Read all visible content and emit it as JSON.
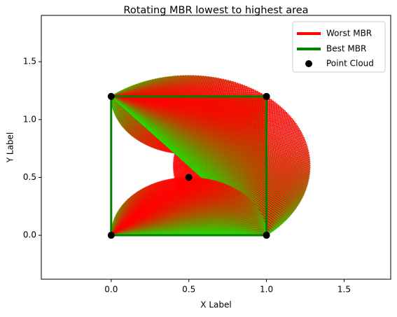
{
  "chart_data": {
    "type": "line",
    "title": "Rotating MBR lowest to highest area",
    "xlabel": "X Label",
    "ylabel": "Y Label",
    "xlim": [
      -0.45,
      1.8
    ],
    "ylim": [
      -0.38,
      1.9
    ],
    "xticks": [
      0.0,
      0.5,
      1.0,
      1.5
    ],
    "yticks": [
      0.0,
      0.5,
      1.0,
      1.5
    ],
    "xtick_labels": [
      "0.0",
      "0.5",
      "1.0",
      "1.5"
    ],
    "ytick_labels": [
      "0.0",
      "0.5",
      "1.0",
      "1.5"
    ],
    "grid": false,
    "legend_position": "top-right",
    "legend": [
      {
        "label": "Worst MBR",
        "kind": "line",
        "color": "#ff0000"
      },
      {
        "label": "Best MBR",
        "kind": "line",
        "color": "#008000"
      },
      {
        "label": "Point Cloud",
        "kind": "marker",
        "color": "#000000"
      }
    ],
    "point_cloud": {
      "x": [
        0.0,
        1.0,
        1.0,
        0.0,
        0.5
      ],
      "y": [
        0.0,
        0.0,
        1.2,
        1.2,
        0.5
      ]
    },
    "best_mbr": {
      "x": [
        0.0,
        1.0,
        1.0,
        0.0,
        0.0
      ],
      "y": [
        0.0,
        0.0,
        1.2,
        1.2,
        0.0
      ]
    },
    "rotation_fans": {
      "color_low_area": "#22dd00",
      "color_high_area": "#ff0000",
      "edges": [
        {
          "from": [
            1.0,
            1.2
          ],
          "to": [
            0.0,
            1.2
          ]
        },
        {
          "from": [
            1.0,
            0.0
          ],
          "to": [
            1.0,
            1.2
          ]
        },
        {
          "from": [
            0.0,
            1.2
          ],
          "to": [
            1.0,
            0.0
          ]
        },
        {
          "from": [
            0.0,
            0.0
          ],
          "to": [
            1.0,
            0.0
          ]
        }
      ]
    }
  }
}
